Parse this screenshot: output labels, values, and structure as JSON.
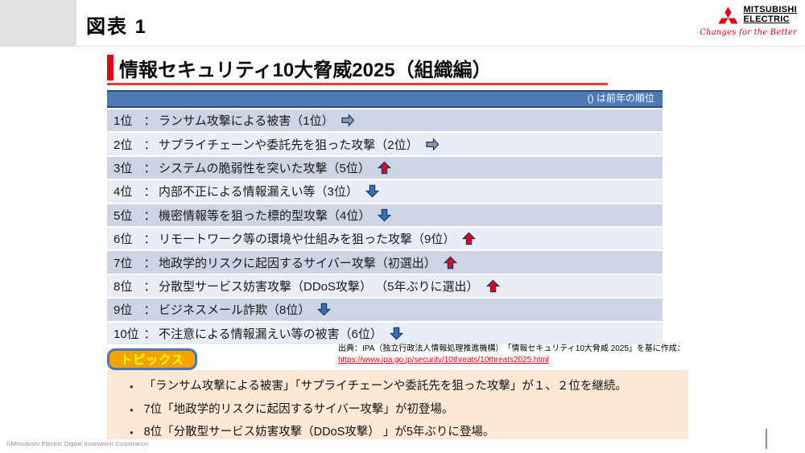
{
  "page": {
    "figure_label": "図表 1",
    "copyright": "©Mitsubishi Electric Digital Innovation Corporation"
  },
  "logo": {
    "brand_line1": "MITSUBISHI",
    "brand_line2": "ELECTRIC",
    "tagline": "Changes for the Better"
  },
  "slide": {
    "title": "情報セキュリティ10大脅威2025（組織編）",
    "table": {
      "header_note": "()  は前年の順位",
      "rows": [
        {
          "rank": "1位",
          "colon": "：",
          "text": "ランサム攻撃による被害（1位）",
          "trend": "same"
        },
        {
          "rank": "2位",
          "colon": "：",
          "text": "サプライチェーンや委託先を狙った攻撃（2位）",
          "trend": "same"
        },
        {
          "rank": "3位",
          "colon": "：",
          "text": "システムの脆弱性を突いた攻撃（5位）",
          "trend": "up"
        },
        {
          "rank": "4位",
          "colon": "：",
          "text": "内部不正による情報漏えい等（3位）",
          "trend": "down"
        },
        {
          "rank": "5位",
          "colon": "：",
          "text": "機密情報等を狙った標的型攻撃（4位）",
          "trend": "down"
        },
        {
          "rank": "6位",
          "colon": "：",
          "text": "リモートワーク等の環境や仕組みを狙った攻撃（9位）",
          "trend": "up"
        },
        {
          "rank": "7位",
          "colon": "：",
          "text": "地政学的リスクに起因するサイバー攻撃（初選出）",
          "trend": "up"
        },
        {
          "rank": "8位",
          "colon": "：",
          "text": "分散型サービス妨害攻撃（DDoS攻撃） （5年ぶりに選出）",
          "trend": "up"
        },
        {
          "rank": "9位",
          "colon": "：",
          "text": "ビジネスメール詐欺（8位）",
          "trend": "down"
        },
        {
          "rank": "10位",
          "colon": "：",
          "text": "不注意による情報漏えい等の被害（6位）",
          "trend": "down"
        }
      ]
    },
    "source": {
      "line1": "出典：IPA（独立行政法人情報処理推進機構）　「情報セキュリティ10大脅威 2025」を基に作成：",
      "link": "https://www.ipa.go.jp/security/10threats/10threats2025.html"
    },
    "topics": {
      "badge": "トピックス",
      "bullets": [
        "「ランサム攻撃による被害」「サプライチェーンや委託先を狙った攻撃」が１、２位を継続。",
        "7位「地政学的リスクに起因するサイバー攻撃」が初登場。",
        "8位「分散型サービス妨害攻撃（DDoS攻撃） 」が5年ぶりに登場。"
      ]
    },
    "colors": {
      "accent_red": "#e60012",
      "header_blue": "#4e79b7",
      "navy_border": "#1f3864",
      "row_dark": "#cdd4e4",
      "row_light": "#e9edf5",
      "arrow_same": "#8e99a7",
      "arrow_up": "#e0001b",
      "arrow_down": "#2e74b5",
      "peach": "#fce8d5",
      "badge_orange": "#f2a202",
      "badge_text": "#ffff00",
      "badge_border": "#4576be"
    }
  }
}
